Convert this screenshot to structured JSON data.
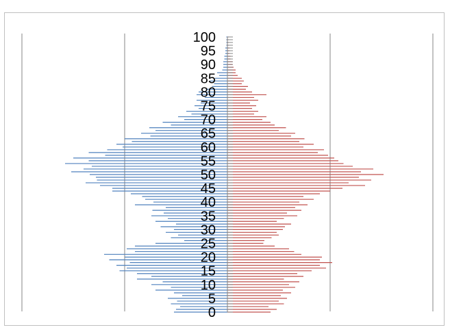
{
  "chart_data": {
    "type": "bar",
    "orientation": "horizontal",
    "subtype": "population-pyramid",
    "title": "",
    "xlabel": "",
    "ylabel": "",
    "y_tick_labels": [
      "0",
      "5",
      "10",
      "15",
      "20",
      "25",
      "30",
      "35",
      "40",
      "45",
      "50",
      "55",
      "60",
      "65",
      "70",
      "75",
      "80",
      "85",
      "90",
      "95",
      "100"
    ],
    "ages": [
      0,
      1,
      2,
      3,
      4,
      5,
      6,
      7,
      8,
      9,
      10,
      11,
      12,
      13,
      14,
      15,
      16,
      17,
      18,
      19,
      20,
      21,
      22,
      23,
      24,
      25,
      26,
      27,
      28,
      29,
      30,
      31,
      32,
      33,
      34,
      35,
      36,
      37,
      38,
      39,
      40,
      41,
      42,
      43,
      44,
      45,
      46,
      47,
      48,
      49,
      50,
      51,
      52,
      53,
      54,
      55,
      56,
      57,
      58,
      59,
      60,
      61,
      62,
      63,
      64,
      65,
      66,
      67,
      68,
      69,
      70,
      71,
      72,
      73,
      74,
      75,
      76,
      77,
      78,
      79,
      80,
      81,
      82,
      83,
      84,
      85,
      86,
      87,
      88,
      89,
      90,
      91,
      92,
      93,
      94,
      95,
      96,
      97,
      98,
      99,
      100
    ],
    "xlim": [
      -2,
      2
    ],
    "grid": "vertical",
    "legend": "none",
    "series": [
      {
        "side": "left",
        "color": "#4f81bd",
        "values": [
          0.52,
          0.5,
          0.46,
          0.55,
          0.49,
          0.58,
          0.44,
          0.52,
          0.7,
          0.55,
          0.74,
          0.63,
          0.88,
          0.74,
          0.88,
          1.05,
          0.98,
          1.08,
          0.95,
          1.15,
          1.0,
          1.2,
          0.9,
          0.98,
          0.9,
          0.7,
          0.42,
          0.55,
          0.48,
          0.6,
          0.52,
          0.65,
          0.5,
          0.7,
          0.58,
          0.74,
          0.62,
          0.73,
          0.6,
          0.9,
          0.72,
          0.8,
          0.83,
          0.94,
          1.12,
          1.12,
          1.24,
          1.38,
          1.27,
          1.28,
          1.34,
          1.52,
          1.4,
          1.32,
          1.58,
          1.35,
          1.5,
          1.19,
          1.35,
          1.17,
          1.02,
          1.08,
          0.93,
          1.0,
          0.75,
          0.84,
          0.7,
          0.76,
          0.55,
          0.63,
          0.42,
          0.48,
          0.35,
          0.4,
          0.28,
          0.32,
          0.26,
          0.3,
          0.22,
          0.3,
          0.28,
          0.2,
          0.15,
          0.13,
          0.17,
          0.12,
          0.08,
          0.1,
          0.05,
          0.04,
          0.04,
          0.04,
          0.03,
          0.03,
          0.02,
          0.02,
          0.02,
          0.01,
          0.01,
          0.01,
          0.01
        ]
      },
      {
        "side": "right",
        "color": "#c0504d",
        "values": [
          0.42,
          0.48,
          0.4,
          0.55,
          0.5,
          0.58,
          0.52,
          0.62,
          0.54,
          0.66,
          0.6,
          0.7,
          0.55,
          0.74,
          0.68,
          0.82,
          0.96,
          0.9,
          1.02,
          0.9,
          0.92,
          0.72,
          0.65,
          0.6,
          0.46,
          0.35,
          0.36,
          0.43,
          0.5,
          0.48,
          0.54,
          0.56,
          0.62,
          0.48,
          0.55,
          0.68,
          0.58,
          0.72,
          0.66,
          0.78,
          0.7,
          0.84,
          0.74,
          0.9,
          1.0,
          1.12,
          1.34,
          1.18,
          1.4,
          1.28,
          1.52,
          1.3,
          1.42,
          1.22,
          1.13,
          1.08,
          1.04,
          0.98,
          0.88,
          0.94,
          0.74,
          0.84,
          0.7,
          0.75,
          0.62,
          0.66,
          0.5,
          0.57,
          0.46,
          0.42,
          0.34,
          0.38,
          0.26,
          0.3,
          0.24,
          0.28,
          0.22,
          0.3,
          0.26,
          0.38,
          0.24,
          0.18,
          0.2,
          0.14,
          0.16,
          0.14,
          0.1,
          0.08,
          0.08,
          0.06,
          0.05,
          0.05,
          0.03,
          0.03,
          0.02,
          0.02,
          0.02,
          0.01,
          0.01,
          0.01,
          0.01
        ]
      }
    ]
  }
}
